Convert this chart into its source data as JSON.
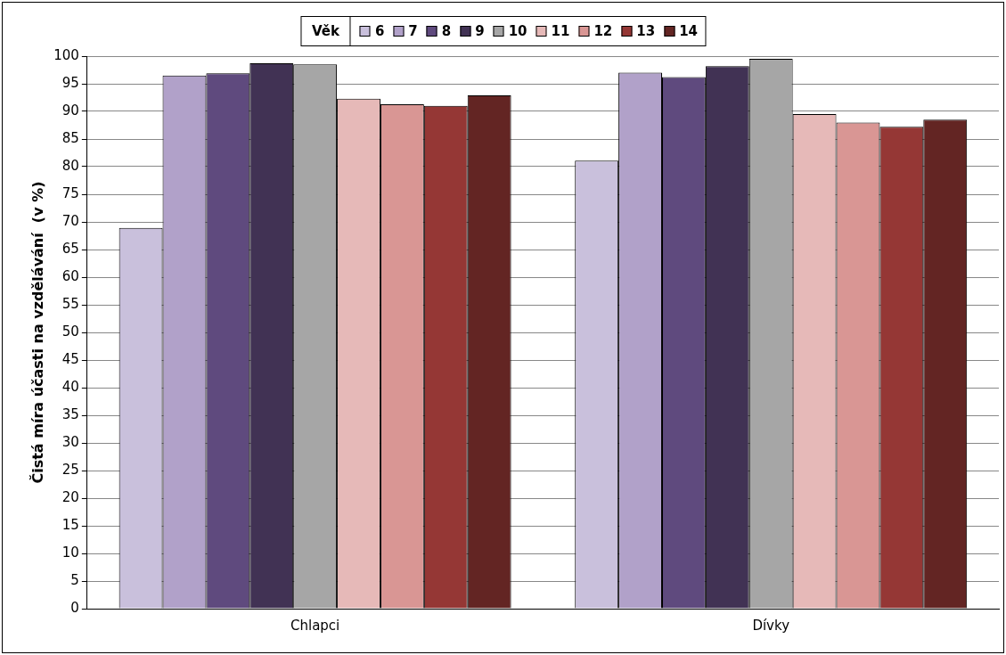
{
  "chart_data": {
    "type": "bar",
    "ylabel": "Čistá míra účasti na vzdělávání  (v %)",
    "legend_title": "Věk",
    "legend": "top",
    "grid": "y",
    "categories": [
      "Chlapci",
      "Dívky"
    ],
    "ylim": [
      0,
      100
    ],
    "yticks": [
      0,
      5,
      10,
      15,
      20,
      25,
      30,
      35,
      40,
      45,
      50,
      55,
      60,
      65,
      70,
      75,
      80,
      85,
      90,
      95,
      100
    ],
    "series": [
      {
        "name": "6",
        "color": "#c9c0dc",
        "values": [
          68.9,
          81.1
        ]
      },
      {
        "name": "7",
        "color": "#b1a1c9",
        "values": [
          96.5,
          97.0
        ]
      },
      {
        "name": "8",
        "color": "#5f4a7e",
        "values": [
          96.9,
          96.2
        ]
      },
      {
        "name": "9",
        "color": "#413254",
        "values": [
          98.7,
          98.2
        ]
      },
      {
        "name": "10",
        "color": "#a6a6a6",
        "values": [
          98.5,
          99.5
        ]
      },
      {
        "name": "11",
        "color": "#e6b9b8",
        "values": [
          92.3,
          89.5
        ]
      },
      {
        "name": "12",
        "color": "#d99694",
        "values": [
          91.3,
          88.0
        ]
      },
      {
        "name": "13",
        "color": "#953735",
        "values": [
          91.0,
          87.2
        ]
      },
      {
        "name": "14",
        "color": "#632523",
        "values": [
          92.9,
          88.5
        ]
      }
    ]
  }
}
